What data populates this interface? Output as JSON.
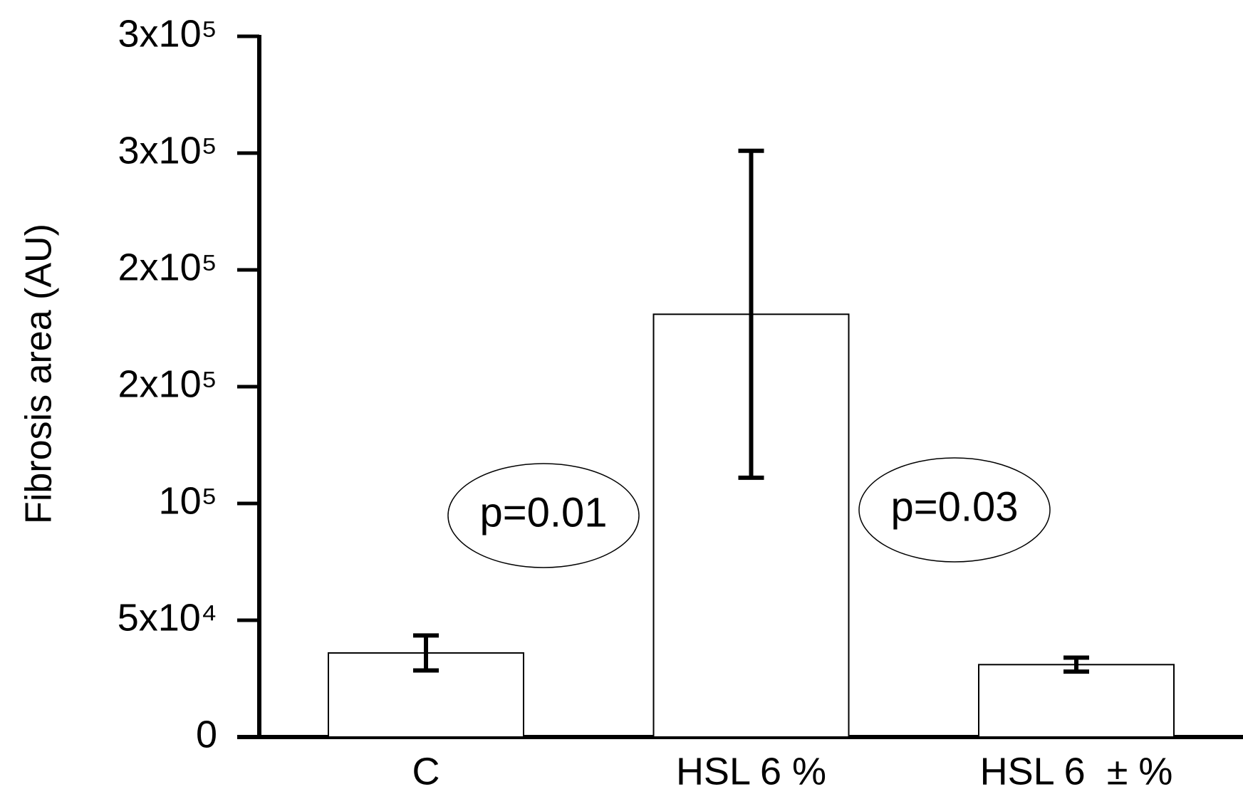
{
  "chart_data": {
    "type": "bar",
    "y_label": "Fibrosis area (AU)",
    "categories": [
      "C",
      "HSL 6 %",
      "HSL 6  ± %"
    ],
    "values": [
      36000,
      181000,
      31000
    ],
    "errors": [
      7500,
      70000,
      3000
    ],
    "color": "#ffffff",
    "ylim": [
      0,
      300000
    ],
    "yticks": [
      0,
      {
        "value": 50000,
        "label": "5x10⁴"
      },
      {
        "value": 100000,
        "label": "10⁵"
      },
      {
        "value": 150000,
        "label": "2x10⁵"
      },
      {
        "value": 200000,
        "label": "2x10⁵"
      },
      {
        "value": 250000,
        "label": "3x10⁵"
      },
      {
        "value": 300000,
        "label": "3x10⁵"
      }
    ],
    "annotations": [
      "p=0.01",
      "p=0.03"
    ],
    "grid": false
  }
}
